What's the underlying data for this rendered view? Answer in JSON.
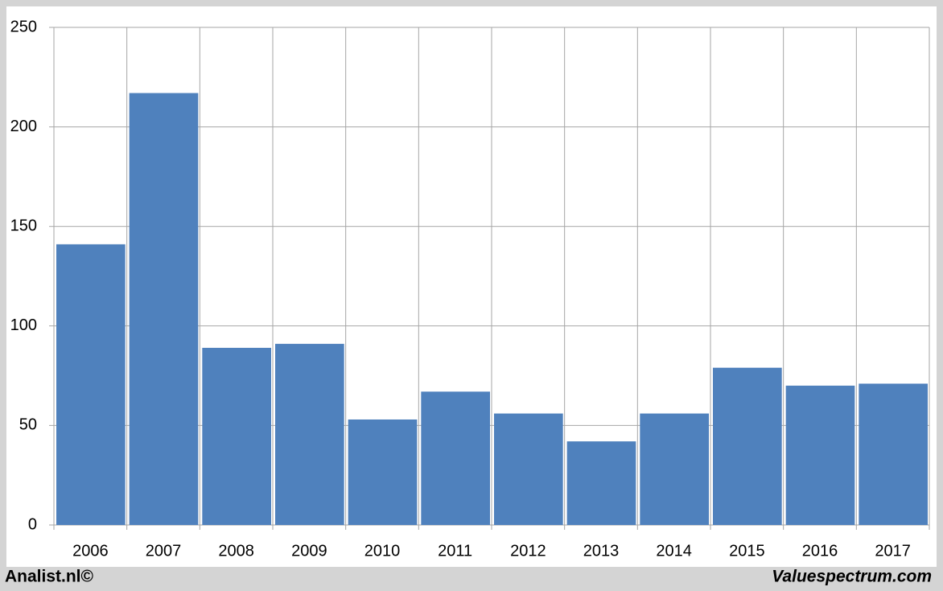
{
  "chart_data": {
    "type": "bar",
    "categories": [
      "2006",
      "2007",
      "2008",
      "2009",
      "2010",
      "2011",
      "2012",
      "2013",
      "2014",
      "2015",
      "2016",
      "2017"
    ],
    "values": [
      141,
      217,
      89,
      91,
      53,
      67,
      56,
      42,
      56,
      79,
      70,
      71
    ],
    "color": "#4f81bd",
    "ylim": [
      0,
      250
    ],
    "yticks": [
      0,
      50,
      100,
      150,
      200,
      250
    ],
    "grid": true
  },
  "footer": {
    "left": "Analist.nl©",
    "right": "Valuespectrum.com"
  }
}
